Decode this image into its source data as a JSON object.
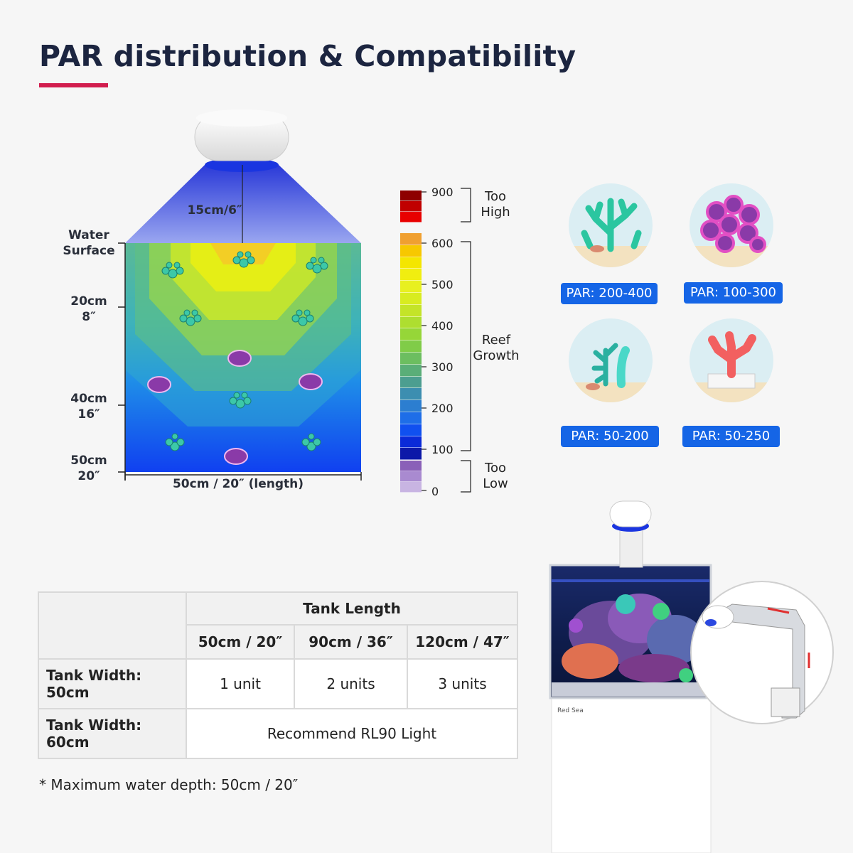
{
  "title": "PAR distribution & Compatibility",
  "diagram": {
    "fixture_height": "15cm/6″",
    "water_surface": [
      "Water",
      "Surface"
    ],
    "depth_marks": [
      {
        "top": "20cm",
        "bottom": "8″"
      },
      {
        "top": "40cm",
        "bottom": "16″"
      },
      {
        "top": "50cm",
        "bottom": "20″"
      }
    ],
    "length_label": "50cm / 20″  (length)"
  },
  "scale": {
    "ticks": [
      "900",
      "600",
      "500",
      "400",
      "300",
      "200",
      "100",
      "0"
    ],
    "ranges": [
      {
        "line1": "Too",
        "line2": "High"
      },
      {
        "line1": "Reef",
        "line2": "Growth"
      },
      {
        "line1": "Too",
        "line2": "Low"
      }
    ],
    "colors": {
      "high": [
        "#8e0000",
        "#c00000",
        "#e80000"
      ],
      "growth": [
        "#f0a030",
        "#f7c800",
        "#f4e600",
        "#f0ee10",
        "#e8f020",
        "#d8ec20",
        "#c4e428",
        "#aede30",
        "#96d638",
        "#80cc48",
        "#6cbe60",
        "#5aae78",
        "#4c9e90",
        "#3c8eb0",
        "#2c7ed0",
        "#1e6ee8",
        "#1050f0",
        "#0a2ad8",
        "#0c18a8"
      ],
      "low": [
        "#8a60b8",
        "#a98ad0",
        "#c8b4e2"
      ]
    }
  },
  "corals": [
    {
      "par": "PAR: 200-400",
      "icon": "green-branch-coral-icon"
    },
    {
      "par": "PAR: 100-300",
      "icon": "purple-brain-coral-icon"
    },
    {
      "par": "PAR: 50-200",
      "icon": "teal-soft-coral-icon"
    },
    {
      "par": "PAR: 50-250",
      "icon": "red-tube-coral-icon"
    }
  ],
  "table": {
    "group_header": "Tank Length",
    "columns": [
      "50cm / 20″",
      "90cm / 36″",
      "120cm / 47″"
    ],
    "rows": [
      {
        "label": "Tank Width: 50cm",
        "cells": [
          "1 unit",
          "2 units",
          "3 units"
        ]
      },
      {
        "label": "Tank Width: 60cm",
        "merged": "Recommend RL90 Light"
      }
    ]
  },
  "footnote": "* Maximum water depth: 50cm / 20″",
  "tank_brand": "Red Sea"
}
